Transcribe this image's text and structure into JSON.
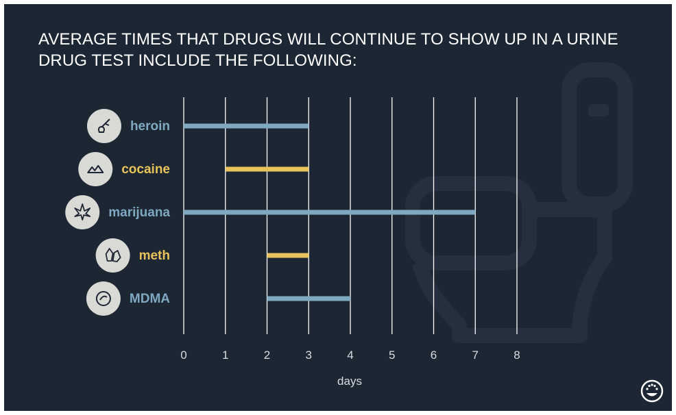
{
  "title": "AVERAGE TIMES THAT DRUGS WILL CONTINUE TO SHOW UP IN A URINE DRUG TEST INCLUDE THE FOLLOWING:",
  "colors": {
    "background": "#1d2633",
    "blue": "#7fa8c1",
    "yellow": "#e8c35c",
    "grid": "#ffffff",
    "icon_bg": "#d9d9d6"
  },
  "chart_data": {
    "type": "bar",
    "orientation": "horizontal-range",
    "title": "AVERAGE TIMES THAT DRUGS WILL CONTINUE TO SHOW UP IN A URINE DRUG TEST INCLUDE THE FOLLOWING:",
    "xlabel": "days",
    "ylabel": "",
    "xlim": [
      0,
      8
    ],
    "xticks": [
      "0",
      "1",
      "2",
      "3",
      "4",
      "5",
      "6",
      "7",
      "8"
    ],
    "grid": true,
    "series": [
      {
        "name": "heroin",
        "start": 0,
        "end": 3,
        "color": "#7fa8c1",
        "icon": "spoon-syringe-icon"
      },
      {
        "name": "cocaine",
        "start": 1,
        "end": 3,
        "color": "#e8c35c",
        "icon": "powder-pile-icon"
      },
      {
        "name": "marijuana",
        "start": 0,
        "end": 7,
        "color": "#7fa8c1",
        "icon": "cannabis-leaf-icon"
      },
      {
        "name": "meth",
        "start": 2,
        "end": 3,
        "color": "#e8c35c",
        "icon": "crystals-icon"
      },
      {
        "name": "MDMA",
        "start": 2,
        "end": 4,
        "color": "#7fa8c1",
        "icon": "pill-icon"
      }
    ]
  },
  "brand": {
    "logo_icon": "smiley-logo-icon"
  }
}
